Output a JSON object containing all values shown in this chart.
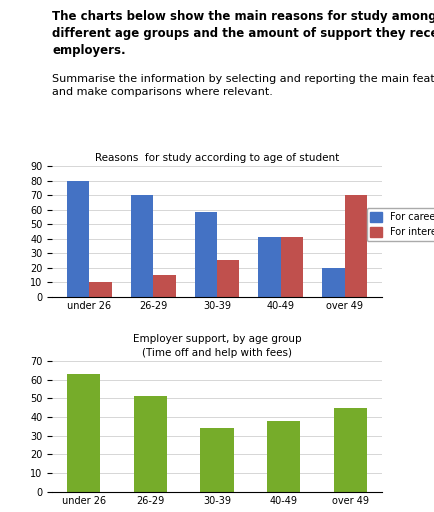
{
  "title_text_bold": "The charts below show the main reasons for study among students of\ndifferent age groups and the amount of support they received from\nemployers.",
  "subtitle_text": "Summarise the information by selecting and reporting the main features\nand make comparisons where relevant.",
  "chart1_title": "Reasons  for study according to age of student",
  "chart1_categories": [
    "under 26",
    "26-29",
    "30-39",
    "40-49",
    "over 49"
  ],
  "chart1_career": [
    80,
    70,
    58,
    41,
    20
  ],
  "chart1_interest": [
    10,
    15,
    25,
    41,
    70
  ],
  "chart1_ylim": [
    0,
    90
  ],
  "chart1_yticks": [
    0,
    10,
    20,
    30,
    40,
    50,
    60,
    70,
    80,
    90
  ],
  "chart1_color_career": "#4472C4",
  "chart1_color_interest": "#C0504D",
  "chart2_title": "Employer support, by age group\n(Time off and help with fees)",
  "chart2_categories": [
    "under 26",
    "26-29",
    "30-39",
    "40-49",
    "over 49"
  ],
  "chart2_values": [
    63,
    51,
    34,
    38,
    45
  ],
  "chart2_ylim": [
    0,
    70
  ],
  "chart2_yticks": [
    0,
    10,
    20,
    30,
    40,
    50,
    60,
    70
  ],
  "chart2_color": "#76AC2A",
  "bg_color": "#FFFFFF",
  "font_color": "#000000",
  "title_fontsize": 8.5,
  "subtitle_fontsize": 8.0,
  "axis_title_fontsize": 7.5,
  "tick_fontsize": 7.0,
  "legend_fontsize": 7.0
}
